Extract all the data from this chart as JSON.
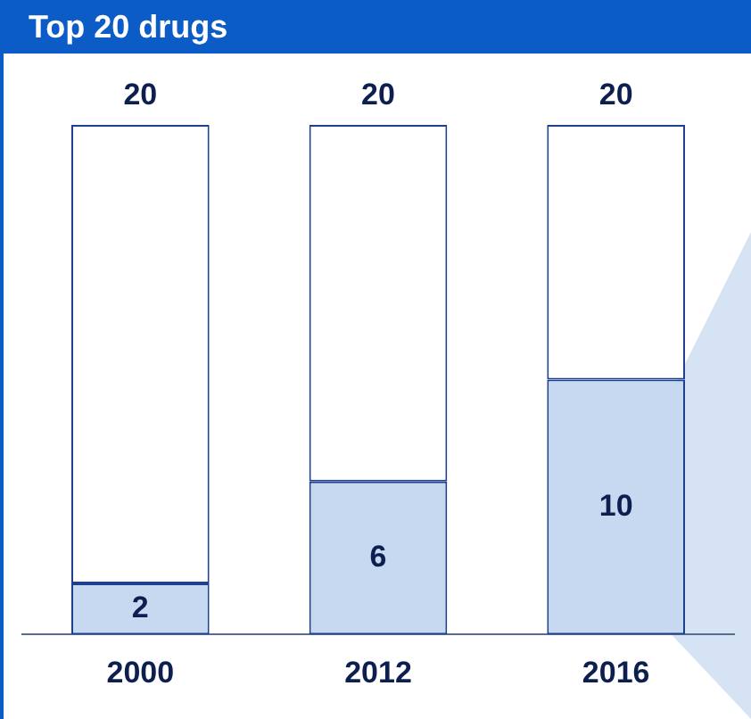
{
  "chart_data": {
    "type": "bar",
    "title": "Top 20 drugs",
    "categories": [
      "2000",
      "2012",
      "2016"
    ],
    "stacked": true,
    "series": [
      {
        "color": "#c6d9f1",
        "values": [
          2,
          6,
          10
        ],
        "value_labels": [
          "2",
          "6",
          "10"
        ]
      },
      {
        "color": "#ffffff",
        "values": [
          18,
          14,
          10
        ]
      }
    ],
    "totals": [
      "20",
      "20",
      "20"
    ],
    "grid": false,
    "legend": false
  }
}
